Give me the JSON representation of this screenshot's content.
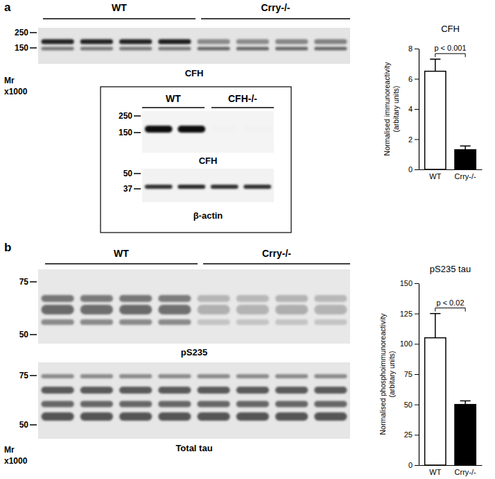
{
  "panels": {
    "a": {
      "letter": "a",
      "groups": [
        "WT",
        "Crry-/-"
      ],
      "markers": [
        "250",
        "150"
      ],
      "blot_label": "CFH",
      "mr": "Mr",
      "mr_unit": "x1000",
      "inset": {
        "groups": [
          "WT",
          "CFH-/-"
        ],
        "markers_top": [
          "250",
          "150"
        ],
        "label_top": "CFH",
        "markers_bottom": [
          "50",
          "37"
        ],
        "label_bottom": "β-actin"
      }
    },
    "b": {
      "letter": "b",
      "groups": [
        "WT",
        "Crry-/-"
      ],
      "markers_top": [
        "75",
        "50"
      ],
      "label_top": "pS235",
      "markers_bottom": [
        "75",
        "50"
      ],
      "label_bottom": "Total tau",
      "mr": "Mr",
      "mr_unit": "x1000"
    }
  },
  "chart_data": [
    {
      "type": "bar",
      "title": "CFH",
      "categories": [
        "WT",
        "Crry-/-"
      ],
      "values": [
        6.5,
        1.3
      ],
      "errors": [
        0.8,
        0.25
      ],
      "colors": [
        "#ffffff",
        "#000000"
      ],
      "ylabel": "Normalised immunoreactivity\n(arbitary units)",
      "ylim": [
        0,
        8
      ],
      "yticks": [
        0,
        2,
        4,
        6,
        8
      ],
      "annotation": "p < 0.001"
    },
    {
      "type": "bar",
      "title": "pS235 tau",
      "categories": [
        "WT",
        "Crry-/-"
      ],
      "values": [
        105,
        50
      ],
      "errors": [
        20,
        3
      ],
      "colors": [
        "#ffffff",
        "#000000"
      ],
      "ylabel": "Normalised phosphoimmunoreactivity\n(arbitary units)",
      "ylim": [
        0,
        150
      ],
      "yticks": [
        0,
        25,
        50,
        75,
        100,
        125,
        150
      ],
      "annotation": "p < 0.02"
    }
  ]
}
